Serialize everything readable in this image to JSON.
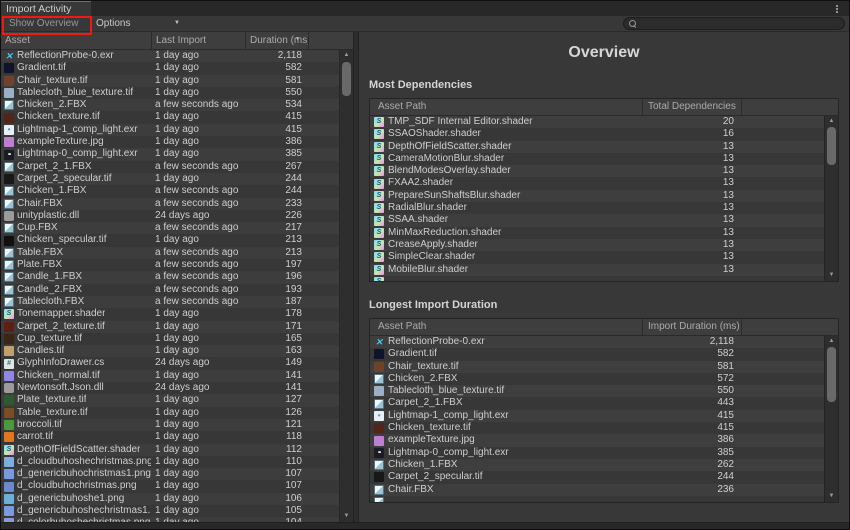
{
  "window": {
    "tab_title": "Import Activity",
    "toolbar": {
      "show_overview_label": "Show Overview",
      "options_label": "Options"
    },
    "search": {
      "value": "",
      "placeholder": ""
    }
  },
  "left_table": {
    "columns": [
      "Asset",
      "Last Import",
      "Duration (ms)"
    ],
    "sorted_column": "Duration (ms)",
    "rows": [
      {
        "asset": "ReflectionProbe-0.exr",
        "last_import": "1 day ago",
        "duration": "2,118",
        "icon": "reflection-probe"
      },
      {
        "asset": "Gradient.tif",
        "last_import": "1 day ago",
        "duration": "582",
        "icon": "texture",
        "color": "#10142a"
      },
      {
        "asset": "Chair_texture.tif",
        "last_import": "1 day ago",
        "duration": "581",
        "icon": "texture",
        "color": "#6e432a"
      },
      {
        "asset": "Tablecloth_blue_texture.tif",
        "last_import": "1 day ago",
        "duration": "550",
        "icon": "texture",
        "color": "#9ab0c4"
      },
      {
        "asset": "Chicken_2.FBX",
        "last_import": "a few seconds ago",
        "duration": "534",
        "icon": "cube"
      },
      {
        "asset": "Chicken_texture.tif",
        "last_import": "1 day ago",
        "duration": "415",
        "icon": "texture",
        "color": "#53241a"
      },
      {
        "asset": "Lightmap-1_comp_light.exr",
        "last_import": "1 day ago",
        "duration": "415",
        "icon": "lightmap-light"
      },
      {
        "asset": "exampleTexture.jpg",
        "last_import": "1 day ago",
        "duration": "386",
        "icon": "texture",
        "color": "#bd7fd0"
      },
      {
        "asset": "Lightmap-0_comp_light.exr",
        "last_import": "1 day ago",
        "duration": "385",
        "icon": "lightmap-dark"
      },
      {
        "asset": "Carpet_2_1.FBX",
        "last_import": "a few seconds ago",
        "duration": "267",
        "icon": "cube"
      },
      {
        "asset": "Carpet_2_specular.tif",
        "last_import": "1 day ago",
        "duration": "244",
        "icon": "texture",
        "color": "#181818"
      },
      {
        "asset": "Chicken_1.FBX",
        "last_import": "a few seconds ago",
        "duration": "244",
        "icon": "cube"
      },
      {
        "asset": "Chair.FBX",
        "last_import": "a few seconds ago",
        "duration": "233",
        "icon": "cube"
      },
      {
        "asset": "unityplastic.dll",
        "last_import": "24 days ago",
        "duration": "226",
        "icon": "dll"
      },
      {
        "asset": "Cup.FBX",
        "last_import": "a few seconds ago",
        "duration": "217",
        "icon": "cube"
      },
      {
        "asset": "Chicken_specular.tif",
        "last_import": "1 day ago",
        "duration": "213",
        "icon": "texture",
        "color": "#101010"
      },
      {
        "asset": "Table.FBX",
        "last_import": "a few seconds ago",
        "duration": "213",
        "icon": "cube"
      },
      {
        "asset": "Plate.FBX",
        "last_import": "a few seconds ago",
        "duration": "197",
        "icon": "cube"
      },
      {
        "asset": "Candle_1.FBX",
        "last_import": "a few seconds ago",
        "duration": "196",
        "icon": "cube"
      },
      {
        "asset": "Candle_2.FBX",
        "last_import": "a few seconds ago",
        "duration": "193",
        "icon": "cube"
      },
      {
        "asset": "Tablecloth.FBX",
        "last_import": "a few seconds ago",
        "duration": "187",
        "icon": "cube"
      },
      {
        "asset": "Tonemapper.shader",
        "last_import": "1 day ago",
        "duration": "178",
        "icon": "shader"
      },
      {
        "asset": "Carpet_2_texture.tif",
        "last_import": "1 day ago",
        "duration": "171",
        "icon": "texture",
        "color": "#5e1f12"
      },
      {
        "asset": "Cup_texture.tif",
        "last_import": "1 day ago",
        "duration": "165",
        "icon": "texture",
        "color": "#3a2614"
      },
      {
        "asset": "Candles.tif",
        "last_import": "1 day ago",
        "duration": "163",
        "icon": "texture",
        "color": "#c2a06a"
      },
      {
        "asset": "GlyphInfoDrawer.cs",
        "last_import": "24 days ago",
        "duration": "149",
        "icon": "script"
      },
      {
        "asset": "Chicken_normal.tif",
        "last_import": "1 day ago",
        "duration": "141",
        "icon": "texture",
        "color": "#8f86e8"
      },
      {
        "asset": "Newtonsoft.Json.dll",
        "last_import": "24 days ago",
        "duration": "141",
        "icon": "dll"
      },
      {
        "asset": "Plate_texture.tif",
        "last_import": "1 day ago",
        "duration": "127",
        "icon": "texture",
        "color": "#2f5a2f"
      },
      {
        "asset": "Table_texture.tif",
        "last_import": "1 day ago",
        "duration": "126",
        "icon": "texture",
        "color": "#7a4e22"
      },
      {
        "asset": "broccoli.tif",
        "last_import": "1 day ago",
        "duration": "121",
        "icon": "texture",
        "color": "#4a9a3a"
      },
      {
        "asset": "carrot.tif",
        "last_import": "1 day ago",
        "duration": "118",
        "icon": "texture",
        "color": "#e0761e"
      },
      {
        "asset": "DepthOfFieldScatter.shader",
        "last_import": "1 day ago",
        "duration": "112",
        "icon": "shader"
      },
      {
        "asset": "d_cloudbuhoshechristmas.png",
        "last_import": "1 day ago",
        "duration": "110",
        "icon": "image",
        "color": "#7ab0e0"
      },
      {
        "asset": "d_genericbuhochristmas1.png",
        "last_import": "1 day ago",
        "duration": "107",
        "icon": "image",
        "color": "#7a9ae0"
      },
      {
        "asset": "d_cloudbuhochristmas.png",
        "last_import": "1 day ago",
        "duration": "107",
        "icon": "image",
        "color": "#6a8ad0"
      },
      {
        "asset": "d_genericbuhoshe1.png",
        "last_import": "1 day ago",
        "duration": "106",
        "icon": "image",
        "color": "#6ab0d8"
      },
      {
        "asset": "d_genericbuhoshechristmas1.pn",
        "last_import": "1 day ago",
        "duration": "105",
        "icon": "image",
        "color": "#7a9ae0"
      },
      {
        "asset": "d_colorbuhoshechristmas.png",
        "last_import": "1 day ago",
        "duration": "104",
        "icon": "image",
        "color": "#8a9ad8"
      }
    ]
  },
  "overview": {
    "title": "Overview",
    "sections": [
      {
        "heading": "Most Dependencies",
        "columns": [
          "Asset Path",
          "Total Dependencies"
        ],
        "rows": [
          {
            "asset": "TMP_SDF Internal Editor.shader",
            "value": "20",
            "icon": "shader"
          },
          {
            "asset": "SSAOShader.shader",
            "value": "16",
            "icon": "shader"
          },
          {
            "asset": "DepthOfFieldScatter.shader",
            "value": "13",
            "icon": "shader"
          },
          {
            "asset": "CameraMotionBlur.shader",
            "value": "13",
            "icon": "shader"
          },
          {
            "asset": "BlendModesOverlay.shader",
            "value": "13",
            "icon": "shader"
          },
          {
            "asset": "FXAA2.shader",
            "value": "13",
            "icon": "shader"
          },
          {
            "asset": "PrepareSunShaftsBlur.shader",
            "value": "13",
            "icon": "shader"
          },
          {
            "asset": "RadialBlur.shader",
            "value": "13",
            "icon": "shader"
          },
          {
            "asset": "SSAA.shader",
            "value": "13",
            "icon": "shader"
          },
          {
            "asset": "MinMaxReduction.shader",
            "value": "13",
            "icon": "shader"
          },
          {
            "asset": "CreaseApply.shader",
            "value": "13",
            "icon": "shader"
          },
          {
            "asset": "SimpleClear.shader",
            "value": "13",
            "icon": "shader"
          },
          {
            "asset": "MobileBlur.shader",
            "value": "13",
            "icon": "shader"
          },
          {
            "asset": "",
            "value": "",
            "icon": "shader"
          }
        ]
      },
      {
        "heading": "Longest Import Duration",
        "columns": [
          "Asset Path",
          "Import Duration (ms)"
        ],
        "rows": [
          {
            "asset": "ReflectionProbe-0.exr",
            "value": "2,118",
            "icon": "reflection-probe"
          },
          {
            "asset": "Gradient.tif",
            "value": "582",
            "icon": "texture",
            "color": "#10142a"
          },
          {
            "asset": "Chair_texture.tif",
            "value": "581",
            "icon": "texture",
            "color": "#6e432a"
          },
          {
            "asset": "Chicken_2.FBX",
            "value": "572",
            "icon": "cube"
          },
          {
            "asset": "Tablecloth_blue_texture.tif",
            "value": "550",
            "icon": "texture",
            "color": "#9ab0c4"
          },
          {
            "asset": "Carpet_2_1.FBX",
            "value": "443",
            "icon": "cube"
          },
          {
            "asset": "Lightmap-1_comp_light.exr",
            "value": "415",
            "icon": "lightmap-light"
          },
          {
            "asset": "Chicken_texture.tif",
            "value": "415",
            "icon": "texture",
            "color": "#53241a"
          },
          {
            "asset": "exampleTexture.jpg",
            "value": "386",
            "icon": "texture",
            "color": "#bd7fd0"
          },
          {
            "asset": "Lightmap-0_comp_light.exr",
            "value": "385",
            "icon": "lightmap-dark"
          },
          {
            "asset": "Chicken_1.FBX",
            "value": "262",
            "icon": "cube"
          },
          {
            "asset": "Carpet_2_specular.tif",
            "value": "244",
            "icon": "texture",
            "color": "#181818"
          },
          {
            "asset": "Chair.FBX",
            "value": "236",
            "icon": "cube"
          },
          {
            "asset": "",
            "value": "",
            "icon": "cube"
          }
        ]
      }
    ]
  },
  "colors": {
    "annotation_red": "#f11a10",
    "active_tab_accent": "#4976ab",
    "panel_bg": "#383838",
    "header_bg": "#3e3e3e"
  }
}
